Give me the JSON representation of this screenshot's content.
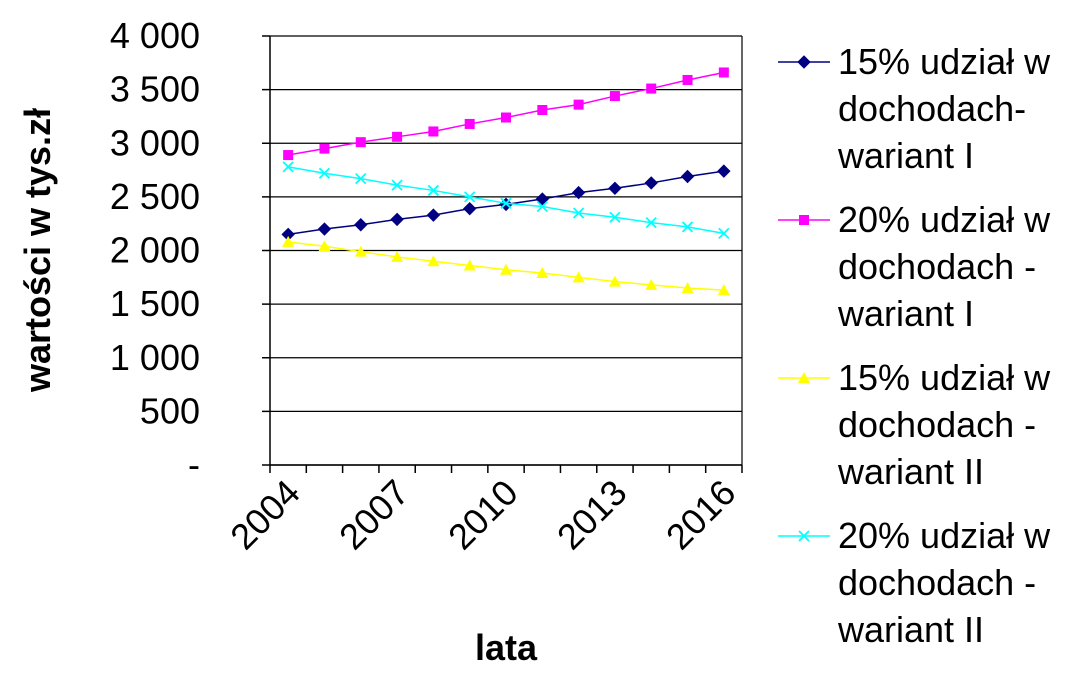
{
  "chart_data": {
    "type": "line",
    "y_label": "wartości w tys.zł",
    "x_label": "lata",
    "categories": [
      "2004",
      null,
      null,
      "2007",
      null,
      null,
      "2010",
      null,
      null,
      "2013",
      null,
      null,
      "2016"
    ],
    "ylim": [
      0,
      4000
    ],
    "yticks": [
      {
        "value": 0,
        "label": "-"
      },
      500,
      {
        "value": 1000,
        "label": "1 000"
      },
      {
        "value": 1500,
        "label": "1 500"
      },
      {
        "value": 2000,
        "label": "2 000"
      },
      {
        "value": 2500,
        "label": "2 500"
      },
      {
        "value": 3000,
        "label": "3 000"
      },
      {
        "value": 3500,
        "label": "3 500"
      },
      {
        "value": 4000,
        "label": "4 000"
      }
    ],
    "grid": true,
    "series": [
      {
        "name": "15% udział w dochodach- wariant I",
        "color": "#000080",
        "marker": "diamond",
        "values": [
          2150,
          2200,
          2240,
          2290,
          2330,
          2390,
          2430,
          2480,
          2540,
          2580,
          2630,
          2690,
          2740
        ]
      },
      {
        "name": "20% udział w dochodach - wariant I",
        "color": "#ff00ff",
        "marker": "square",
        "values": [
          2890,
          2950,
          3010,
          3060,
          3110,
          3180,
          3240,
          3310,
          3360,
          3440,
          3510,
          3590,
          3660
        ]
      },
      {
        "name": "15% udział w dochodach - wariant II",
        "color": "#ffff00",
        "marker": "triangle",
        "values": [
          2080,
          2040,
          1990,
          1940,
          1900,
          1860,
          1820,
          1790,
          1750,
          1710,
          1680,
          1650,
          1630
        ]
      },
      {
        "name": "20% udział w dochodach - wariant II",
        "color": "#00ffff",
        "marker": "x",
        "values": [
          2780,
          2720,
          2670,
          2610,
          2560,
          2500,
          2440,
          2410,
          2350,
          2310,
          2260,
          2220,
          2160
        ]
      }
    ]
  }
}
